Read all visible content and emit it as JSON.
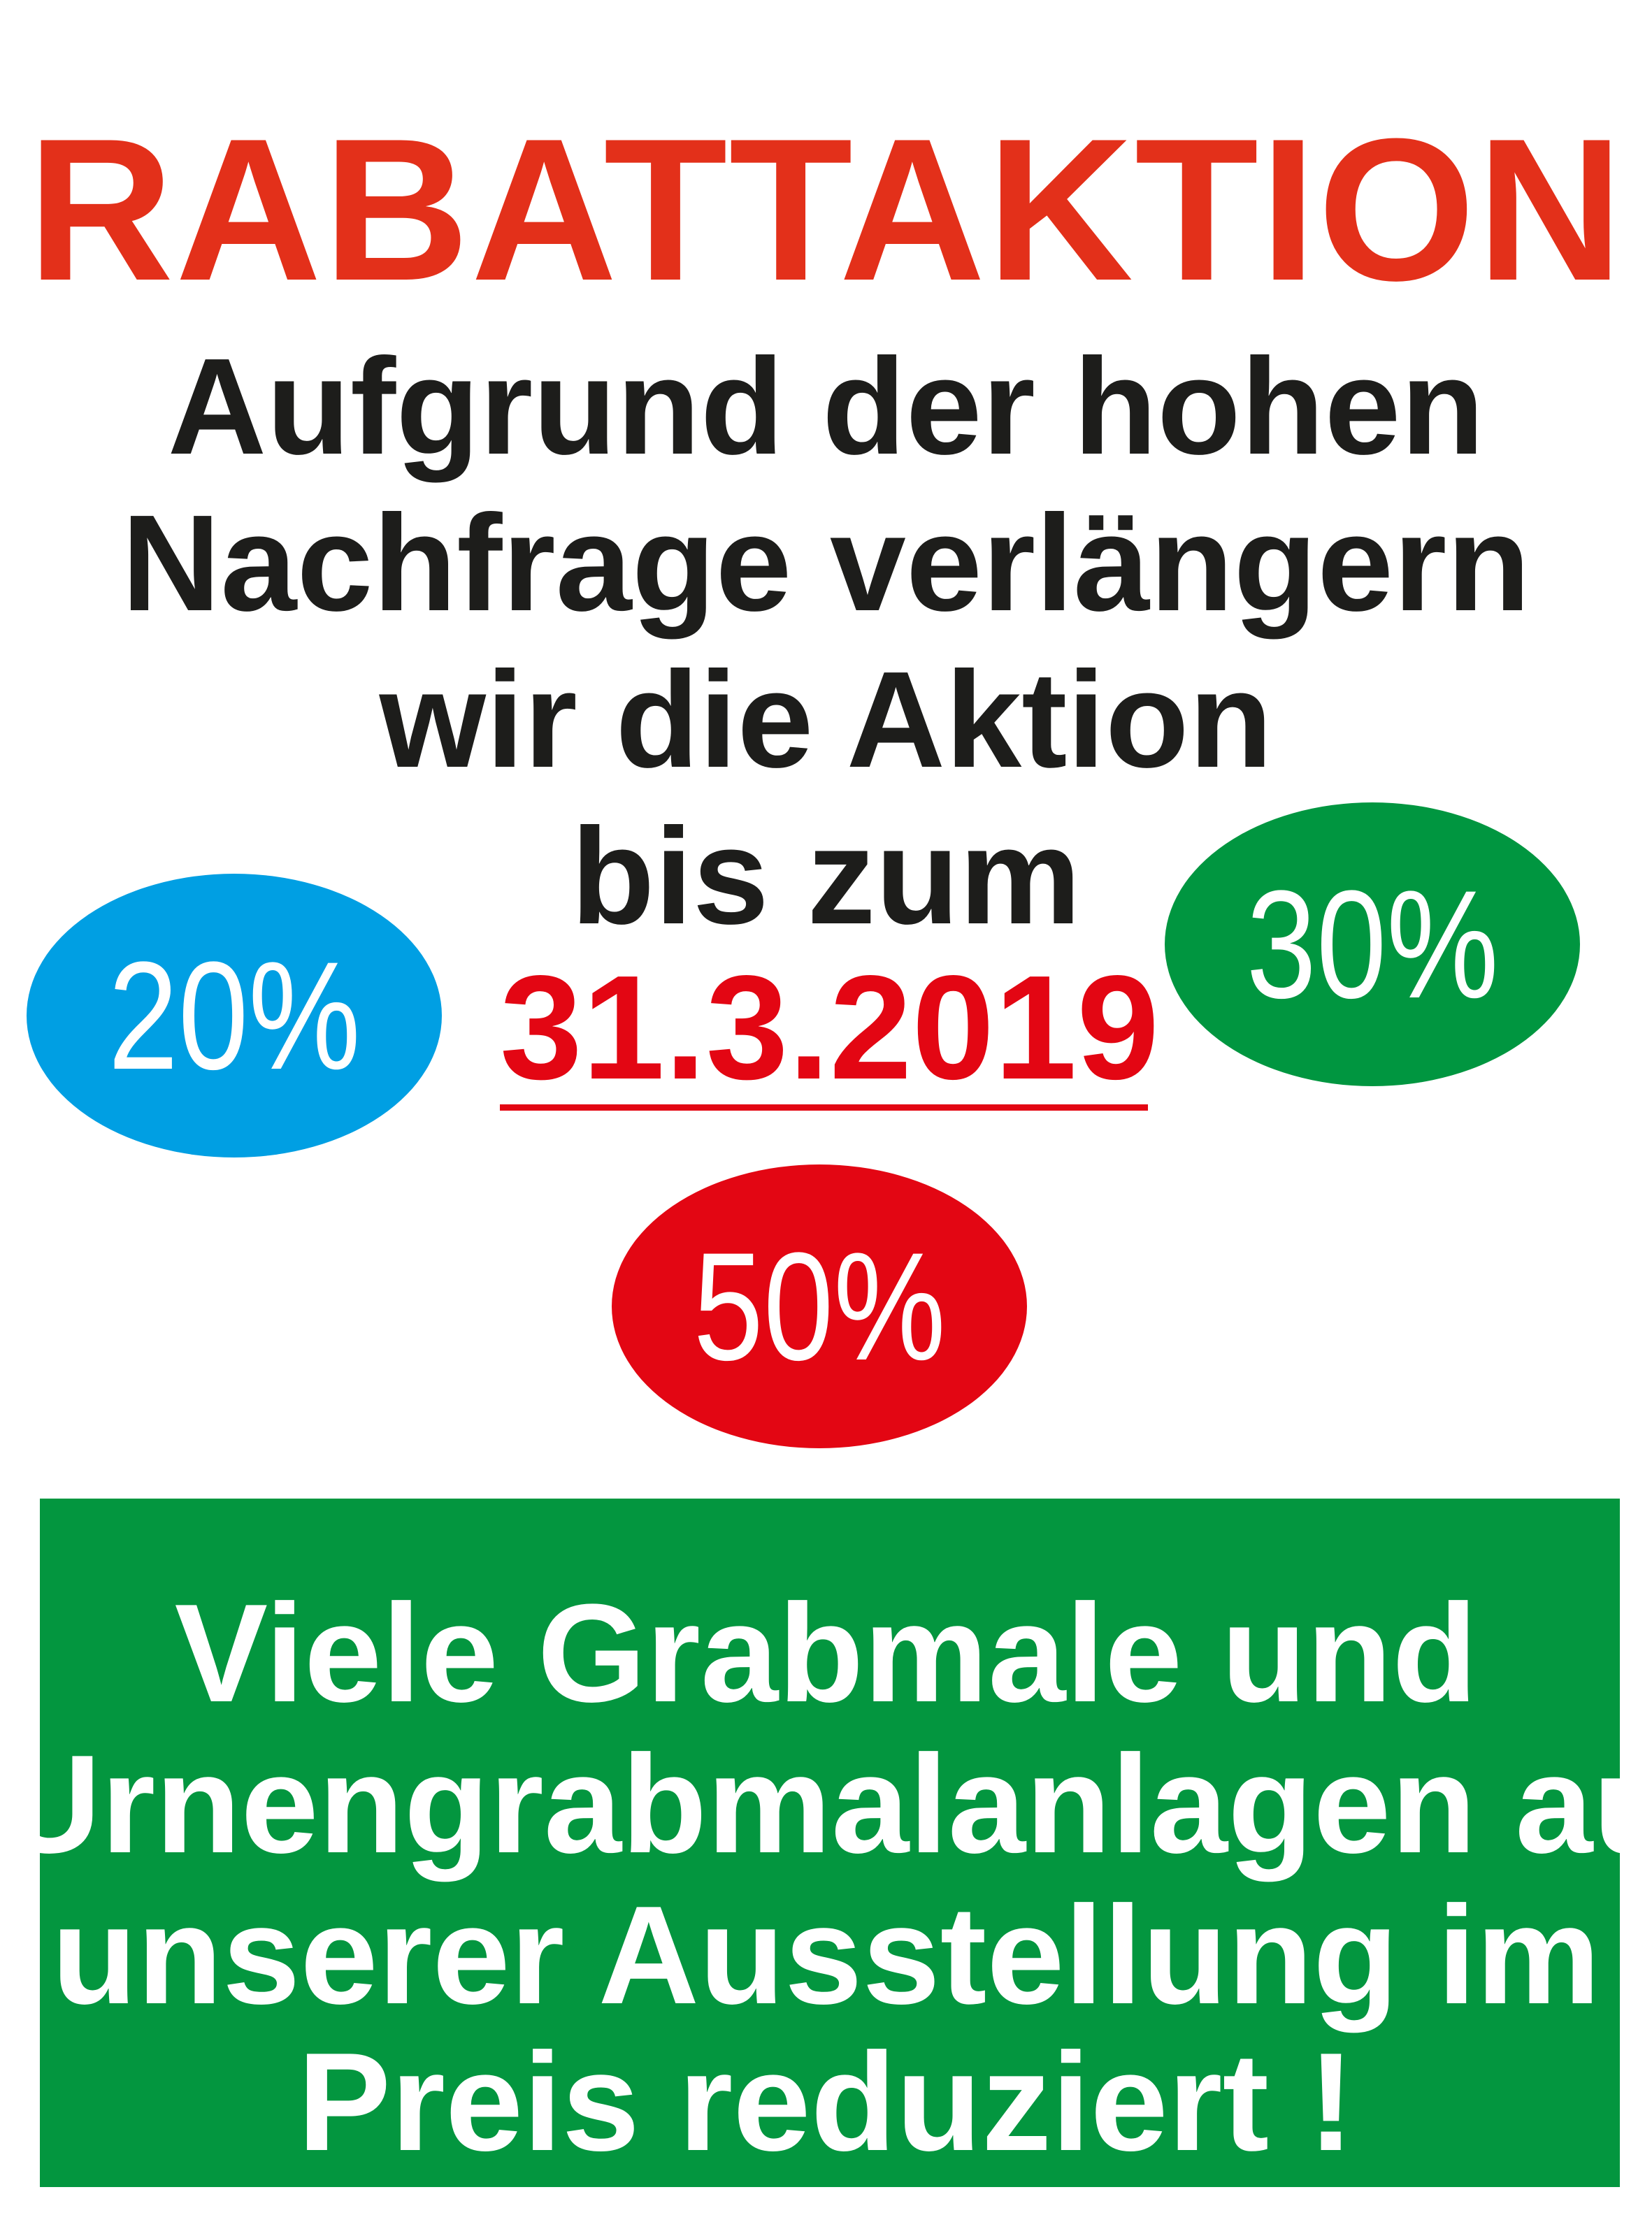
{
  "title": "RABATTAKTION",
  "message": {
    "lines": [
      "Aufgrund der hohen",
      "Nachfrage verlängern",
      "wir die Aktion",
      "bis zum"
    ],
    "date": "31.3.2019"
  },
  "badges": [
    {
      "label": "20%",
      "color": "#009fe3"
    },
    {
      "label": "30%",
      "color": "#009640"
    },
    {
      "label": "50%",
      "color": "#e30613"
    }
  ],
  "banner": {
    "color": "#03963f",
    "lines": [
      "Viele Grabmale und",
      "Urnengrabmalanlagen aus",
      "unserer Ausstellung im",
      "Preis reduziert !"
    ]
  }
}
